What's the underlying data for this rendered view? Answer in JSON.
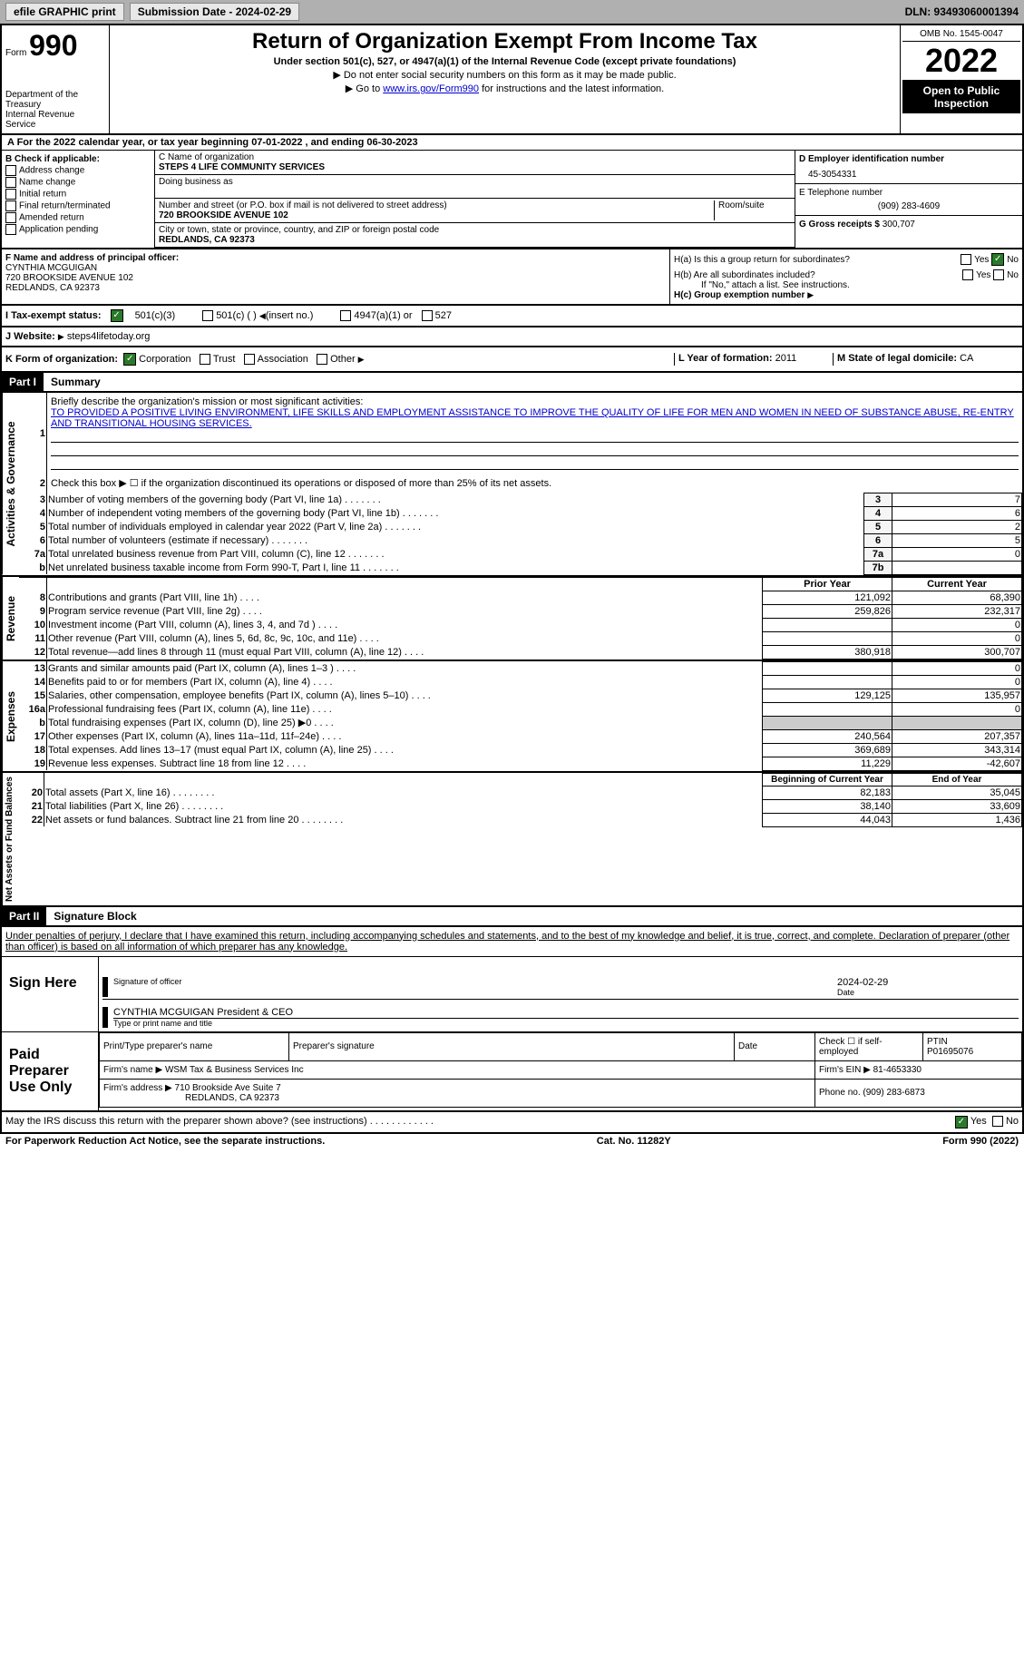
{
  "topbar": {
    "efile_label": "efile GRAPHIC print",
    "submission_label": "Submission Date - 2024-02-29",
    "dln_label": "DLN: 93493060001394"
  },
  "header": {
    "form_label": "Form",
    "form_number": "990",
    "title": "Return of Organization Exempt From Income Tax",
    "subtitle": "Under section 501(c), 527, or 4947(a)(1) of the Internal Revenue Code (except private foundations)",
    "note1": "Do not enter social security numbers on this form as it may be made public.",
    "note2_prefix": "Go to ",
    "note2_link": "www.irs.gov/Form990",
    "note2_suffix": " for instructions and the latest information.",
    "dept": "Department of the Treasury",
    "irs": "Internal Revenue Service",
    "omb": "OMB No. 1545-0047",
    "year": "2022",
    "open": "Open to Public Inspection"
  },
  "section_a": {
    "text": "A For the 2022 calendar year, or tax year beginning 07-01-2022    , and ending 06-30-2023"
  },
  "col_b": {
    "header": "B Check if applicable:",
    "opts": [
      "Address change",
      "Name change",
      "Initial return",
      "Final return/terminated",
      "Amended return",
      "Application pending"
    ]
  },
  "col_c": {
    "name_label": "C Name of organization",
    "name": "STEPS 4 LIFE COMMUNITY SERVICES",
    "dba_label": "Doing business as",
    "addr_label": "Number and street (or P.O. box if mail is not delivered to street address)",
    "room_label": "Room/suite",
    "addr": "720 BROOKSIDE AVENUE 102",
    "city_label": "City or town, state or province, country, and ZIP or foreign postal code",
    "city": "REDLANDS, CA  92373"
  },
  "col_d": {
    "ein_label": "D Employer identification number",
    "ein": "45-3054331",
    "phone_label": "E Telephone number",
    "phone": "(909) 283-4609",
    "gross_label": "G Gross receipts $",
    "gross": "300,707"
  },
  "row_f": {
    "label": "F Name and address of principal officer:",
    "name": "CYNTHIA MCGUIGAN",
    "addr1": "720 BROOKSIDE AVENUE 102",
    "addr2": "REDLANDS, CA  92373"
  },
  "row_h": {
    "ha_label": "H(a)  Is this a group return for subordinates?",
    "hb_label": "H(b)  Are all subordinates included?",
    "hb_note": "If \"No,\" attach a list. See instructions.",
    "hc_label": "H(c)  Group exemption number",
    "yes": "Yes",
    "no": "No"
  },
  "row_i": {
    "label": "I  Tax-exempt status:",
    "opt1": "501(c)(3)",
    "opt2": "501(c) (  )",
    "opt2_note": "(insert no.)",
    "opt3": "4947(a)(1) or",
    "opt4": "527"
  },
  "row_j": {
    "label": "J  Website:",
    "value": "steps4lifetoday.org"
  },
  "row_k": {
    "label": "K Form of organization:",
    "opts": [
      "Corporation",
      "Trust",
      "Association",
      "Other"
    ],
    "l_label": "L Year of formation:",
    "l_val": "2011",
    "m_label": "M State of legal domicile:",
    "m_val": "CA"
  },
  "part1": {
    "header": "Part I",
    "title": "Summary",
    "line1_label": "Briefly describe the organization's mission or most significant activities:",
    "mission": "TO PROVIDED A POSITIVE LIVING ENVIRONMENT, LIFE SKILLS AND EMPLOYMENT ASSISTANCE TO IMPROVE THE QUALITY OF LIFE FOR MEN AND WOMEN IN NEED OF SUBSTANCE ABUSE, RE-ENTRY AND TRANSITIONAL HOUSING SERVICES.",
    "line2": "Check this box ▶ ☐ if the organization discontinued its operations or disposed of more than 25% of its net assets.",
    "sidelabels": {
      "governance": "Activities & Governance",
      "revenue": "Revenue",
      "expenses": "Expenses",
      "netassets": "Net Assets or Fund Balances"
    },
    "lines_gov": [
      {
        "n": "3",
        "label": "Number of voting members of the governing body (Part VI, line 1a)",
        "box": "3",
        "val": "7"
      },
      {
        "n": "4",
        "label": "Number of independent voting members of the governing body (Part VI, line 1b)",
        "box": "4",
        "val": "6"
      },
      {
        "n": "5",
        "label": "Total number of individuals employed in calendar year 2022 (Part V, line 2a)",
        "box": "5",
        "val": "2"
      },
      {
        "n": "6",
        "label": "Total number of volunteers (estimate if necessary)",
        "box": "6",
        "val": "5"
      },
      {
        "n": "7a",
        "label": "Total unrelated business revenue from Part VIII, column (C), line 12",
        "box": "7a",
        "val": "0"
      },
      {
        "n": "b",
        "label": "Net unrelated business taxable income from Form 990-T, Part I, line 11",
        "box": "7b",
        "val": ""
      }
    ],
    "col_headers": {
      "prior": "Prior Year",
      "current": "Current Year",
      "beg": "Beginning of Current Year",
      "end": "End of Year"
    },
    "lines_rev": [
      {
        "n": "8",
        "label": "Contributions and grants (Part VIII, line 1h)",
        "prior": "121,092",
        "curr": "68,390"
      },
      {
        "n": "9",
        "label": "Program service revenue (Part VIII, line 2g)",
        "prior": "259,826",
        "curr": "232,317"
      },
      {
        "n": "10",
        "label": "Investment income (Part VIII, column (A), lines 3, 4, and 7d )",
        "prior": "",
        "curr": "0"
      },
      {
        "n": "11",
        "label": "Other revenue (Part VIII, column (A), lines 5, 6d, 8c, 9c, 10c, and 11e)",
        "prior": "",
        "curr": "0"
      },
      {
        "n": "12",
        "label": "Total revenue—add lines 8 through 11 (must equal Part VIII, column (A), line 12)",
        "prior": "380,918",
        "curr": "300,707"
      }
    ],
    "lines_exp": [
      {
        "n": "13",
        "label": "Grants and similar amounts paid (Part IX, column (A), lines 1–3 )",
        "prior": "",
        "curr": "0"
      },
      {
        "n": "14",
        "label": "Benefits paid to or for members (Part IX, column (A), line 4)",
        "prior": "",
        "curr": "0"
      },
      {
        "n": "15",
        "label": "Salaries, other compensation, employee benefits (Part IX, column (A), lines 5–10)",
        "prior": "129,125",
        "curr": "135,957"
      },
      {
        "n": "16a",
        "label": "Professional fundraising fees (Part IX, column (A), line 11e)",
        "prior": "",
        "curr": "0"
      },
      {
        "n": "b",
        "label": "Total fundraising expenses (Part IX, column (D), line 25) ▶0",
        "prior": "SHADED",
        "curr": "SHADED"
      },
      {
        "n": "17",
        "label": "Other expenses (Part IX, column (A), lines 11a–11d, 11f–24e)",
        "prior": "240,564",
        "curr": "207,357"
      },
      {
        "n": "18",
        "label": "Total expenses. Add lines 13–17 (must equal Part IX, column (A), line 25)",
        "prior": "369,689",
        "curr": "343,314"
      },
      {
        "n": "19",
        "label": "Revenue less expenses. Subtract line 18 from line 12",
        "prior": "11,229",
        "curr": "-42,607"
      }
    ],
    "lines_net": [
      {
        "n": "20",
        "label": "Total assets (Part X, line 16)",
        "prior": "82,183",
        "curr": "35,045"
      },
      {
        "n": "21",
        "label": "Total liabilities (Part X, line 26)",
        "prior": "38,140",
        "curr": "33,609"
      },
      {
        "n": "22",
        "label": "Net assets or fund balances. Subtract line 21 from line 20",
        "prior": "44,043",
        "curr": "1,436"
      }
    ]
  },
  "part2": {
    "header": "Part II",
    "title": "Signature Block",
    "declaration": "Under penalties of perjury, I declare that I have examined this return, including accompanying schedules and statements, and to the best of my knowledge and belief, it is true, correct, and complete. Declaration of preparer (other than officer) is based on all information of which preparer has any knowledge.",
    "sign_here": "Sign Here",
    "sig_officer": "Signature of officer",
    "sig_date": "2024-02-29",
    "date_label": "Date",
    "officer_name": "CYNTHIA MCGUIGAN  President & CEO",
    "type_label": "Type or print name and title",
    "paid_prep": "Paid Preparer Use Only",
    "prep_name_label": "Print/Type preparer's name",
    "prep_sig_label": "Preparer's signature",
    "prep_date_label": "Date",
    "check_if": "Check ☐ if self-employed",
    "ptin_label": "PTIN",
    "ptin": "P01695076",
    "firm_name_label": "Firm's name  ▶",
    "firm_name": "WSM Tax & Business Services Inc",
    "firm_ein_label": "Firm's EIN ▶",
    "firm_ein": "81-4653330",
    "firm_addr_label": "Firm's address ▶",
    "firm_addr1": "710 Brookside Ave Suite 7",
    "firm_addr2": "REDLANDS, CA  92373",
    "firm_phone_label": "Phone no.",
    "firm_phone": "(909) 283-6873",
    "discuss": "May the IRS discuss this return with the preparer shown above? (see instructions)",
    "yes": "Yes",
    "no": "No"
  },
  "footer": {
    "paperwork": "For Paperwork Reduction Act Notice, see the separate instructions.",
    "cat": "Cat. No. 11282Y",
    "form": "Form 990 (2022)"
  }
}
